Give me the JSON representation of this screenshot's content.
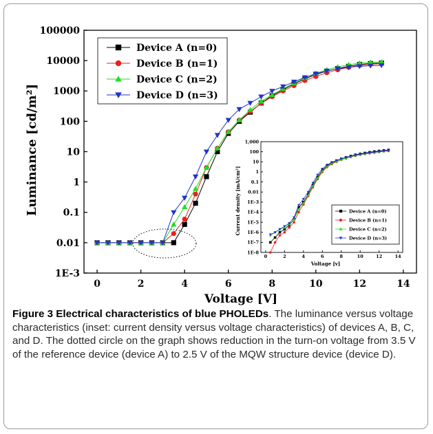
{
  "chart_data": [
    {
      "type": "line",
      "xlabel": "Voltage [V]",
      "ylabel": "Luminance [cd/m²]",
      "xlim": [
        -0.6,
        14.6
      ],
      "ylim": [
        0.001,
        100000
      ],
      "yscale": "log",
      "xticks": [
        "0",
        "2",
        "4",
        "6",
        "8",
        "10",
        "12",
        "14"
      ],
      "yticks": [
        "1E-3",
        "0.01",
        "0.1",
        "1",
        "10",
        "100",
        "1000",
        "10000",
        "100000"
      ],
      "legend_position": "top-left",
      "series": [
        {
          "name": "Device A (n=0)",
          "color": "#000000",
          "marker": "square",
          "x": [
            0,
            0.5,
            1,
            1.5,
            2,
            2.5,
            3,
            3.5,
            4,
            4.5,
            5,
            5.5,
            6,
            6.5,
            7,
            7.5,
            8,
            8.5,
            9,
            9.5,
            10,
            10.5,
            11,
            11.5,
            12,
            12.5,
            13
          ],
          "y": [
            0.01,
            0.01,
            0.01,
            0.01,
            0.01,
            0.01,
            0.01,
            0.01,
            0.04,
            0.2,
            1.5,
            10,
            40,
            100,
            200,
            400,
            700,
            1100,
            1700,
            2500,
            3500,
            4500,
            5500,
            6500,
            7500,
            8000,
            8300
          ]
        },
        {
          "name": "Device B (n=1)",
          "color": "#e8211c",
          "marker": "circle",
          "x": [
            0,
            0.5,
            1,
            1.5,
            2,
            2.5,
            3,
            3.5,
            4,
            4.5,
            5,
            5.5,
            6,
            6.5,
            7,
            7.5,
            8,
            8.5,
            9,
            9.5,
            10,
            10.5,
            11,
            11.5,
            12,
            12.5,
            13
          ],
          "y": [
            0.01,
            0.01,
            0.01,
            0.01,
            0.01,
            0.01,
            0.01,
            0.02,
            0.06,
            0.4,
            3,
            13,
            45,
            110,
            210,
            390,
            650,
            1000,
            1500,
            2200,
            3000,
            4000,
            5000,
            6000,
            7000,
            7500,
            8000
          ]
        },
        {
          "name": "Device C (n=2)",
          "color": "#22dd22",
          "marker": "triangle-up",
          "x": [
            0,
            0.5,
            1,
            1.5,
            2,
            2.5,
            3,
            3.5,
            4,
            4.5,
            5,
            5.5,
            6,
            6.5,
            7,
            7.5,
            8,
            8.5,
            9,
            9.5,
            10,
            10.5,
            11,
            11.5,
            12,
            12.5,
            13
          ],
          "y": [
            0.01,
            0.01,
            0.01,
            0.01,
            0.01,
            0.01,
            0.01,
            0.04,
            0.15,
            0.6,
            3,
            13,
            45,
            110,
            240,
            460,
            750,
            1200,
            1800,
            2700,
            3800,
            5000,
            6200,
            7300,
            8300,
            8800,
            9000
          ]
        },
        {
          "name": "Device D (n=3)",
          "color": "#2233cc",
          "marker": "triangle-down",
          "x": [
            0,
            0.5,
            1,
            1.5,
            2,
            2.5,
            3,
            3.5,
            4,
            4.5,
            5,
            5.5,
            6,
            6.5,
            7,
            7.5,
            8,
            8.5,
            9,
            9.5,
            10,
            10.5,
            11,
            11.5,
            12,
            12.5,
            13
          ],
          "y": [
            0.01,
            0.01,
            0.01,
            0.01,
            0.01,
            0.01,
            0.01,
            0.1,
            0.3,
            1.5,
            10,
            35,
            110,
            250,
            400,
            650,
            1000,
            1400,
            2000,
            2800,
            3700,
            4600,
            5400,
            6000,
            6500,
            6800,
            7000
          ]
        }
      ],
      "annotation": "dotted-ellipse"
    },
    {
      "type": "line",
      "xlabel": "Voltage [v]",
      "ylabel": "Current density [mA/cm²]",
      "xlim": [
        -0.5,
        14.5
      ],
      "ylim": [
        1e-08,
        1000
      ],
      "yscale": "log",
      "xticks": [
        "0",
        "2",
        "4",
        "6",
        "8",
        "10",
        "12",
        "14"
      ],
      "yticks": [
        "1E-8",
        "1E-7",
        "1E-6",
        "1E-5",
        "1E-4",
        "1E-3",
        "0.01",
        "0.1",
        "1",
        "10",
        "100",
        "1,000"
      ],
      "legend_position": "bottom-right",
      "series": [
        {
          "name": "Device A (n=0)",
          "color": "#000000",
          "marker": "square",
          "x": [
            0.5,
            1,
            1.5,
            2,
            2.5,
            3,
            3.5,
            4,
            4.5,
            5,
            5.5,
            6,
            6.5,
            7,
            7.5,
            8,
            8.5,
            9,
            9.5,
            10,
            10.5,
            11,
            11.5,
            12,
            12.5,
            13
          ],
          "y": [
            1e-07,
            3e-07,
            1e-06,
            2e-06,
            5e-06,
            2e-05,
            0.0003,
            0.001,
            0.006,
            0.05,
            0.3,
            1.5,
            4,
            8,
            13,
            20,
            28,
            38,
            50,
            62,
            75,
            90,
            105,
            120,
            135,
            150
          ]
        },
        {
          "name": "Device B (n=1)",
          "color": "#e8211c",
          "marker": "circle",
          "x": [
            0.5,
            1,
            1.5,
            2,
            2.5,
            3,
            3.5,
            4,
            4.5,
            5,
            5.5,
            6,
            6.5,
            7,
            7.5,
            8,
            8.5,
            9,
            9.5,
            10,
            10.5,
            11,
            11.5,
            12,
            12.5,
            13
          ],
          "y": [
            1e-08,
            1e-07,
            5e-07,
            1e-06,
            3e-06,
            1e-05,
            0.0001,
            0.0006,
            0.004,
            0.03,
            0.2,
            1,
            3,
            6,
            10,
            16,
            22,
            30,
            40,
            50,
            60,
            70,
            82,
            95,
            110,
            120
          ]
        },
        {
          "name": "Device C (n=2)",
          "color": "#22dd22",
          "marker": "triangle-up",
          "x": [
            0.5,
            1,
            1.5,
            2,
            2.5,
            3,
            3.5,
            4,
            4.5,
            5,
            5.5,
            6,
            6.5,
            7,
            7.5,
            8,
            8.5,
            9,
            9.5,
            10,
            10.5,
            11,
            11.5,
            12,
            12.5,
            13
          ],
          "y": [
            5e-07,
            1e-06,
            2e-06,
            3e-06,
            6e-06,
            2e-05,
            0.0002,
            0.0008,
            0.005,
            0.04,
            0.25,
            1.2,
            3.5,
            7,
            11,
            17,
            24,
            32,
            42,
            53,
            64,
            76,
            88,
            100,
            115,
            130
          ]
        },
        {
          "name": "Device D (n=3)",
          "color": "#2233cc",
          "marker": "triangle-down",
          "x": [
            0.5,
            1,
            1.5,
            2,
            2.5,
            3,
            3.5,
            4,
            4.5,
            5,
            5.5,
            6,
            6.5,
            7,
            7.5,
            8,
            8.5,
            9,
            9.5,
            10,
            10.5,
            11,
            11.5,
            12,
            12.5,
            13
          ],
          "y": [
            6e-07,
            1e-06,
            2e-06,
            4e-06,
            8e-06,
            3e-05,
            0.0005,
            0.002,
            0.01,
            0.08,
            0.5,
            2,
            5,
            9,
            14,
            20,
            27,
            36,
            46,
            57,
            68,
            80,
            92,
            105,
            118,
            130
          ]
        }
      ]
    }
  ],
  "caption": {
    "title": "Figure 3 Electrical characteristics of blue PHOLEDs",
    "text": ". The luminance versus voltage characteristics (inset: current density versus voltage characteristics) of devices A, B, C, and D. The dotted circle on the graph shows reduction in the turn-on voltage from 3.5 V of the reference device (device A) to 2.5 V of the MQW structure device (device D)."
  }
}
